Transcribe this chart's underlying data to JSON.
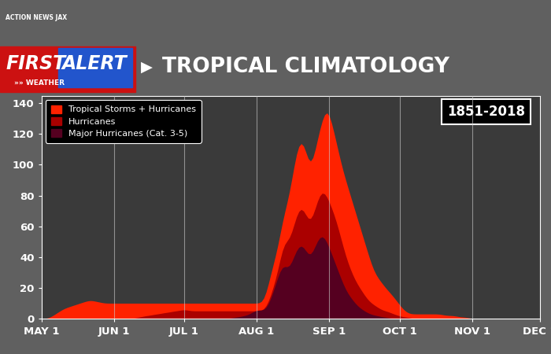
{
  "title": "TROPICAL CLIMATOLOGY",
  "year_range": "1851-2018",
  "fig_bg": "#606060",
  "header_bg_left": "#cc1111",
  "header_bg_right": "#1a3a8a",
  "plot_bg": "#3a3a3a",
  "ylim": [
    0,
    145
  ],
  "yticks": [
    0,
    20,
    40,
    60,
    80,
    100,
    120,
    140
  ],
  "xtick_labels": [
    "MAY 1",
    "JUN 1",
    "JUL 1",
    "AUG 1",
    "SEP 1",
    "OCT 1",
    "NOV 1",
    "DEC 1"
  ],
  "legend_labels": [
    "Tropical Storms + Hurricanes",
    "Hurricanes",
    "Major Hurricanes (Cat. 3-5)"
  ],
  "legend_colors": [
    "#ff2200",
    "#aa0000",
    "#550020"
  ],
  "color_ts_hurr": "#ff2200",
  "color_hurr": "#aa0000",
  "color_major": "#550020",
  "color_vlines": "#cccccc",
  "month_positions": [
    0,
    31,
    61,
    92,
    123,
    153,
    184,
    213
  ],
  "ts_hurr_key": [
    0,
    0,
    0,
    0,
    1,
    2,
    3,
    4,
    5,
    6,
    7,
    7,
    8,
    8,
    9,
    9,
    10,
    10,
    11,
    11,
    12,
    12,
    12,
    11,
    11,
    11,
    10,
    10,
    10,
    10,
    10,
    10,
    10,
    10,
    10,
    10,
    10,
    10,
    10,
    10,
    10,
    10,
    10,
    10,
    10,
    10,
    10,
    10,
    10,
    10,
    10,
    10,
    10,
    10,
    10,
    10,
    10,
    10,
    10,
    10,
    10,
    10,
    10,
    10,
    10,
    10,
    10,
    10,
    10,
    10,
    10,
    10,
    10,
    10,
    10,
    10,
    10,
    10,
    10,
    10,
    10,
    10,
    10,
    10,
    10,
    10,
    10,
    10,
    10,
    10,
    10,
    10,
    10,
    10,
    10,
    10,
    15,
    22,
    30,
    35,
    40,
    45,
    55,
    65,
    70,
    75,
    80,
    90,
    100,
    110,
    115,
    120,
    115,
    110,
    100,
    95,
    100,
    110,
    118,
    123,
    130,
    135,
    140,
    135,
    128,
    120,
    115,
    108,
    100,
    95,
    90,
    85,
    80,
    75,
    70,
    65,
    60,
    55,
    50,
    45,
    40,
    35,
    30,
    28,
    26,
    24,
    22,
    20,
    18,
    17,
    15,
    13,
    11,
    9,
    7,
    5,
    4,
    3,
    3,
    3,
    3,
    3,
    3,
    3,
    3,
    3,
    3,
    3,
    3,
    3,
    3,
    3,
    2,
    2,
    2,
    2,
    2,
    2,
    1,
    1,
    1,
    1,
    1,
    0,
    0,
    0,
    0,
    0,
    0,
    0,
    0,
    0,
    0,
    0,
    0,
    0,
    0,
    0,
    0,
    0,
    0,
    0,
    0,
    0,
    0,
    0,
    0,
    0,
    0,
    0,
    0,
    0,
    0,
    0
  ],
  "hurr_key": [
    0,
    0,
    0,
    0,
    0,
    0,
    0,
    0,
    0,
    0,
    0,
    0,
    0,
    0,
    0,
    0,
    0,
    0,
    0,
    0,
    0,
    0,
    0,
    0,
    0,
    0,
    0,
    0,
    0,
    0,
    0,
    0,
    0,
    0,
    0,
    0,
    0,
    0,
    0,
    0,
    0,
    1,
    1,
    1,
    2,
    2,
    2,
    2,
    3,
    3,
    3,
    3,
    4,
    4,
    4,
    4,
    5,
    5,
    5,
    5,
    6,
    6,
    6,
    5,
    5,
    5,
    5,
    5,
    5,
    5,
    5,
    5,
    5,
    5,
    5,
    5,
    5,
    5,
    5,
    5,
    5,
    5,
    5,
    5,
    5,
    5,
    5,
    5,
    5,
    5,
    5,
    5,
    5,
    5,
    5,
    5,
    7,
    10,
    15,
    20,
    25,
    30,
    38,
    48,
    53,
    50,
    48,
    55,
    62,
    68,
    72,
    75,
    72,
    68,
    62,
    60,
    65,
    72,
    78,
    82,
    85,
    83,
    80,
    76,
    72,
    68,
    64,
    58,
    52,
    46,
    40,
    36,
    32,
    28,
    25,
    22,
    20,
    18,
    15,
    13,
    11,
    10,
    9,
    8,
    7,
    6,
    5,
    5,
    5,
    4,
    3,
    3,
    2,
    2,
    1,
    1,
    1,
    1,
    0,
    0,
    0,
    0,
    0,
    0,
    0,
    0,
    0,
    0,
    0,
    0,
    0,
    0,
    0,
    0,
    0,
    0,
    0,
    0,
    0,
    0,
    0,
    0,
    0,
    0,
    0,
    0,
    0,
    0,
    0,
    0,
    0,
    0,
    0,
    0,
    0,
    0,
    0,
    0,
    0,
    0,
    0,
    0,
    0,
    0,
    0,
    0,
    0,
    0,
    0,
    0,
    0,
    0,
    0,
    0
  ],
  "major_key": [
    0,
    0,
    0,
    0,
    0,
    0,
    0,
    0,
    0,
    0,
    0,
    0,
    0,
    0,
    0,
    0,
    0,
    0,
    0,
    0,
    0,
    0,
    0,
    0,
    0,
    0,
    0,
    0,
    0,
    0,
    0,
    0,
    0,
    0,
    0,
    0,
    0,
    0,
    0,
    0,
    0,
    0,
    0,
    0,
    0,
    0,
    0,
    0,
    0,
    0,
    0,
    0,
    0,
    0,
    0,
    0,
    0,
    0,
    0,
    0,
    0,
    0,
    0,
    0,
    0,
    0,
    0,
    0,
    0,
    0,
    0,
    0,
    0,
    0,
    0,
    0,
    0,
    0,
    0,
    0,
    0,
    0,
    1,
    1,
    1,
    1,
    2,
    2,
    2,
    3,
    4,
    5,
    6,
    6,
    5,
    5,
    6,
    8,
    12,
    18,
    22,
    26,
    32,
    38,
    35,
    32,
    30,
    36,
    42,
    45,
    48,
    50,
    48,
    44,
    40,
    38,
    42,
    48,
    52,
    54,
    56,
    54,
    50,
    46,
    42,
    38,
    34,
    30,
    26,
    22,
    18,
    16,
    14,
    12,
    10,
    8,
    7,
    6,
    5,
    4,
    3,
    3,
    2,
    2,
    2,
    1,
    1,
    1,
    1,
    0,
    0,
    0,
    0,
    0,
    0,
    0,
    0,
    0,
    0,
    0,
    0,
    0,
    0,
    0,
    0,
    0,
    0,
    0,
    0,
    0,
    0,
    0,
    0,
    0,
    0,
    0,
    0,
    0,
    0,
    0,
    0,
    0,
    0,
    0,
    0,
    0,
    0,
    0,
    0,
    0,
    0,
    0,
    0,
    0,
    0,
    0,
    0,
    0,
    0,
    0,
    0,
    0,
    0,
    0,
    0,
    0,
    0,
    0,
    0,
    0,
    0,
    0,
    0,
    0
  ]
}
